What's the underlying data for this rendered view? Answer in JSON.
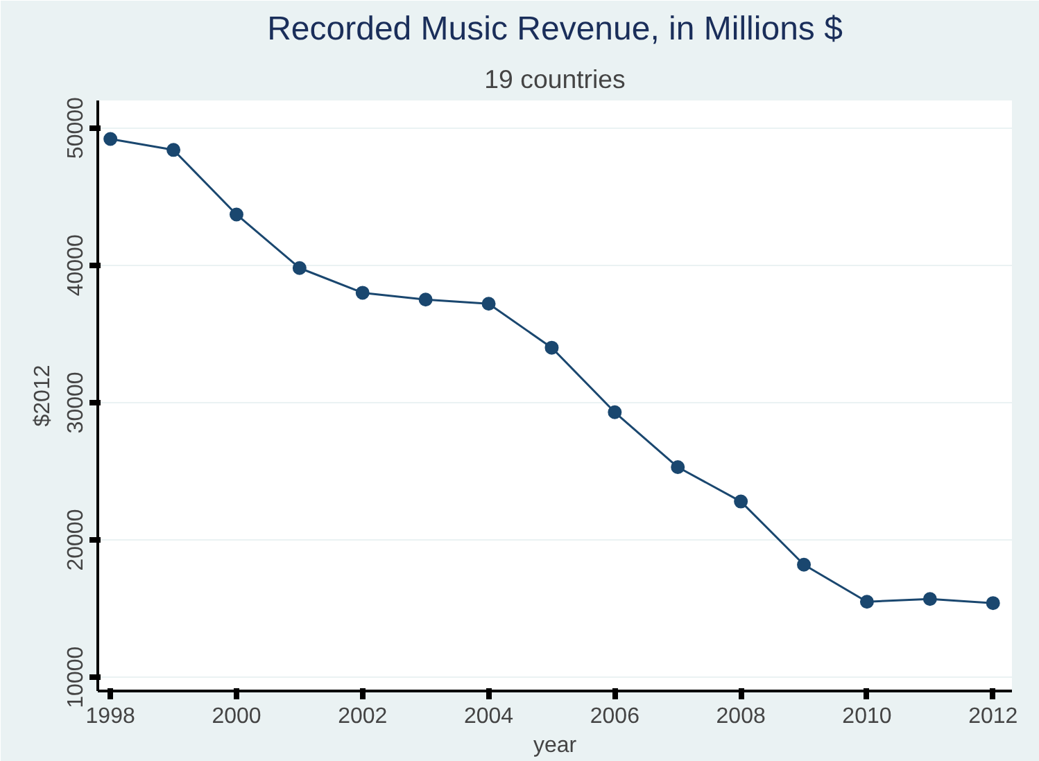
{
  "chart_data": {
    "type": "line",
    "title": "Recorded Music Revenue, in Millions $",
    "subtitle": "19 countries",
    "xlabel": "year",
    "ylabel": "$2012",
    "x": [
      1998,
      1999,
      2000,
      2001,
      2002,
      2003,
      2004,
      2005,
      2006,
      2007,
      2008,
      2009,
      2010,
      2011,
      2012
    ],
    "series": [
      {
        "color": "#1a476f",
        "values": [
          49200,
          48400,
          43700,
          39800,
          38000,
          37500,
          37200,
          34000,
          29300,
          25300,
          22800,
          18200,
          15500,
          15700,
          15400
        ]
      }
    ],
    "xlim": [
      1997.8,
      2012.3
    ],
    "ylim": [
      9000,
      52000
    ],
    "xticks": [
      1998,
      2000,
      2002,
      2004,
      2006,
      2008,
      2010,
      2012
    ],
    "yticks": [
      10000,
      20000,
      30000,
      40000,
      50000
    ],
    "grid": "y",
    "marker": "circle",
    "line_style": "solid"
  }
}
